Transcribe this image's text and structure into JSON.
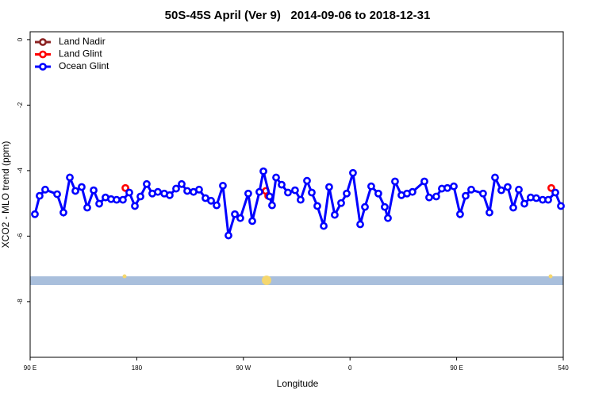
{
  "chart_data": {
    "type": "line",
    "title": "50S-45S April (Ver 9)   2014-09-06 to 2018-12-31",
    "xlabel": "Longitude",
    "ylabel": "XCO2 - MLO trend (ppm)",
    "xlim": [
      90,
      540
    ],
    "ylim": [
      -9.7,
      0.24
    ],
    "xticks": [
      {
        "value": 90,
        "label": "90 E"
      },
      180,
      {
        "value": 270,
        "label": "90 W"
      },
      {
        "value": 360,
        "label": "0"
      },
      {
        "value": 450,
        "label": "90 E"
      },
      540
    ],
    "yticks": [
      0,
      -2,
      -4,
      -6,
      -8
    ],
    "legend": "top-left",
    "series": [
      {
        "name": "Land Nadir",
        "color": "#8b2323",
        "style": "lines+points",
        "x": [],
        "values": []
      },
      {
        "name": "Land Glint",
        "color": "#ff0000",
        "style": "points",
        "x": [
          170.4,
          288.9,
          290.9,
          529.9
        ],
        "values": [
          -4.53,
          -4.62,
          -4.77,
          -4.53
        ]
      },
      {
        "name": "Ocean Glint",
        "color": "#0000ff",
        "style": "lines+points",
        "x": [
          94.0,
          98.0,
          102.7,
          112.8,
          118.1,
          123.5,
          128.2,
          133.5,
          138.2,
          143.6,
          148.3,
          153.6,
          158.3,
          163.0,
          168.3,
          173.7,
          178.4,
          183.1,
          188.4,
          193.1,
          197.8,
          203.2,
          207.8,
          213.2,
          217.9,
          222.6,
          227.9,
          232.6,
          238.0,
          242.7,
          247.4,
          252.7,
          257.4,
          262.8,
          267.4,
          274.1,
          277.5,
          283.5,
          286.9,
          292.2,
          294.2,
          297.6,
          302.3,
          307.6,
          313.6,
          318.3,
          323.7,
          327.7,
          332.4,
          337.8,
          342.4,
          347.1,
          352.5,
          357.2,
          362.5,
          368.6,
          372.6,
          377.9,
          383.9,
          389.3,
          392.0,
          398.0,
          403.4,
          408.1,
          412.7,
          422.8,
          426.8,
          432.8,
          437.5,
          442.2,
          447.6,
          452.9,
          457.6,
          462.3,
          472.3,
          477.7,
          482.4,
          487.7,
          493.1,
          497.8,
          502.5,
          507.2,
          512.5,
          517.2,
          522.6,
          527.3,
          533.3,
          538.0
        ],
        "values": [
          -5.33,
          -4.77,
          -4.58,
          -4.72,
          -5.28,
          -4.21,
          -4.62,
          -4.5,
          -5.13,
          -4.6,
          -5.01,
          -4.82,
          -4.87,
          -4.89,
          -4.89,
          -4.67,
          -5.08,
          -4.79,
          -4.41,
          -4.7,
          -4.65,
          -4.7,
          -4.75,
          -4.55,
          -4.41,
          -4.62,
          -4.65,
          -4.58,
          -4.84,
          -4.92,
          -5.06,
          -4.46,
          -5.98,
          -5.33,
          -5.45,
          -4.7,
          -5.54,
          -4.65,
          -4.02,
          -4.79,
          -5.06,
          -4.21,
          -4.43,
          -4.67,
          -4.6,
          -4.89,
          -4.31,
          -4.67,
          -5.08,
          -5.69,
          -4.5,
          -5.35,
          -4.99,
          -4.7,
          -4.07,
          -5.64,
          -5.11,
          -4.48,
          -4.7,
          -5.11,
          -5.45,
          -4.33,
          -4.75,
          -4.7,
          -4.65,
          -4.33,
          -4.82,
          -4.79,
          -4.55,
          -4.53,
          -4.48,
          -5.33,
          -4.77,
          -4.58,
          -4.7,
          -5.28,
          -4.21,
          -4.6,
          -4.5,
          -5.13,
          -4.58,
          -5.01,
          -4.82,
          -4.84,
          -4.89,
          -4.89,
          -4.67,
          -5.08
        ]
      }
    ]
  }
}
